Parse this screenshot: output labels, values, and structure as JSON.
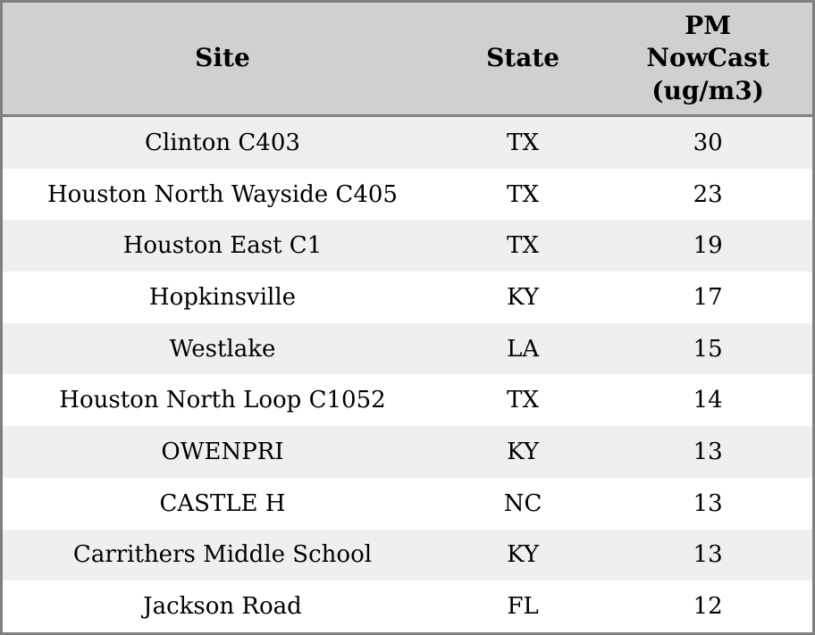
{
  "table": {
    "columns": {
      "site_label": "Site",
      "state_label": "State",
      "pm_label": "PM NowCast (ug/m3)"
    },
    "rows": [
      {
        "site": "Clinton C403",
        "state": "TX",
        "pm": "30"
      },
      {
        "site": "Houston North Wayside C405",
        "state": "TX",
        "pm": "23"
      },
      {
        "site": "Houston East C1",
        "state": "TX",
        "pm": "19"
      },
      {
        "site": "Hopkinsville",
        "state": "KY",
        "pm": "17"
      },
      {
        "site": "Westlake",
        "state": "LA",
        "pm": "15"
      },
      {
        "site": "Houston North Loop C1052",
        "state": "TX",
        "pm": "14"
      },
      {
        "site": "OWENPRI",
        "state": "KY",
        "pm": "13"
      },
      {
        "site": "CASTLE H",
        "state": "NC",
        "pm": "13"
      },
      {
        "site": "Carrithers Middle School",
        "state": "KY",
        "pm": "13"
      },
      {
        "site": "Jackson Road",
        "state": "FL",
        "pm": "12"
      }
    ],
    "colors": {
      "header_background": "#d0d0d0",
      "alternate_row_background": "#efefef",
      "border": "#7f7f7f",
      "text": "#000000"
    }
  }
}
